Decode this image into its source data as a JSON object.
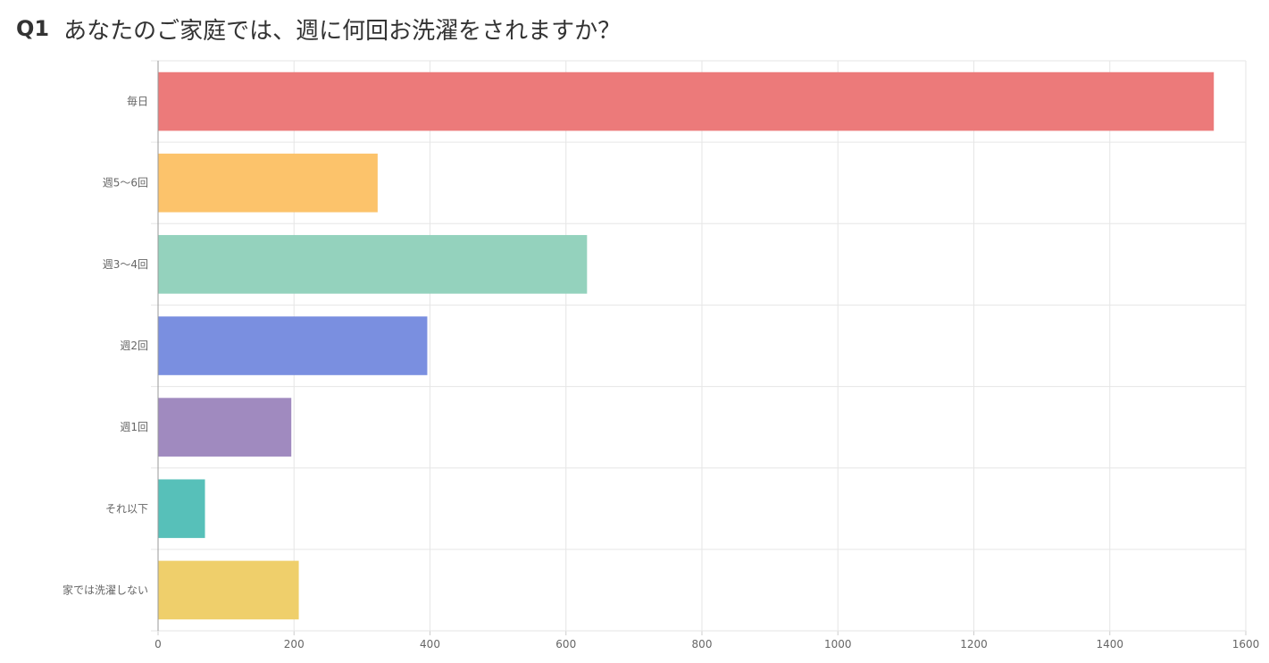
{
  "question": {
    "number": "Q1",
    "text": "あなたのご家庭では、週に何回お洗濯をされますか？"
  },
  "chart_data": {
    "type": "bar",
    "orientation": "horizontal",
    "categories": [
      "毎日",
      "週5～6回",
      "週3～4回",
      "週2回",
      "週1回",
      "それ以下",
      "家では洗濯しない"
    ],
    "values": [
      1553,
      323,
      631,
      396,
      196,
      69,
      207
    ],
    "colors": [
      "#ec7a7a",
      "#fcc36b",
      "#94d2bd",
      "#7a8fe0",
      "#a08abf",
      "#57c0b9",
      "#efcf6b"
    ],
    "xlim": [
      0,
      1600
    ],
    "x_ticks": [
      "0",
      "200",
      "400",
      "600",
      "800",
      "1000",
      "1200",
      "1400",
      "1600"
    ],
    "grid": true,
    "legend": "none"
  }
}
